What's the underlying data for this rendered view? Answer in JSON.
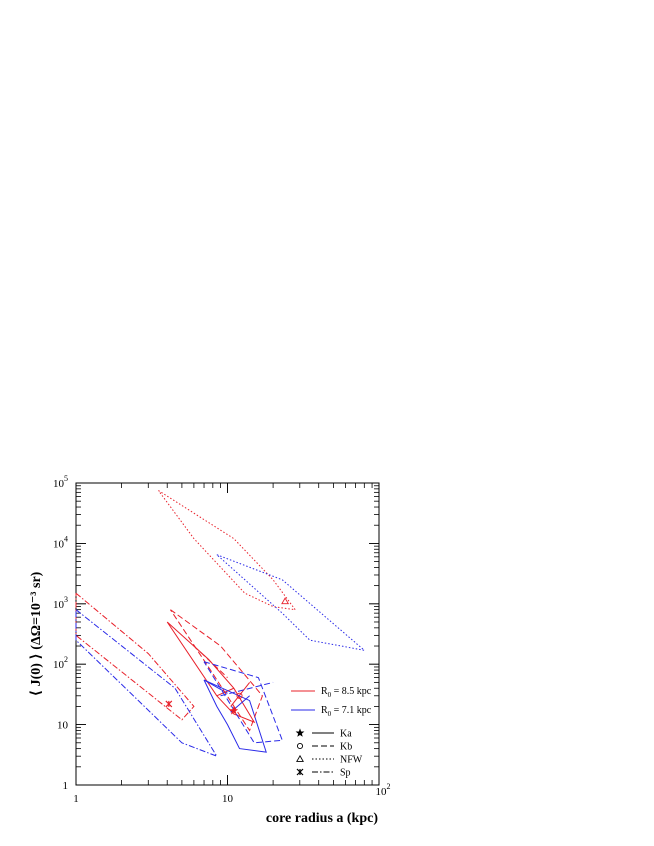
{
  "chart_data": {
    "type": "line",
    "title": "",
    "xlabel": "core radius a (kpc)",
    "ylabel": "⟨ J(0) ⟩ (ΔΩ=10⁻³ sr)",
    "xscale": "log",
    "yscale": "log",
    "xlim": [
      1,
      100
    ],
    "ylim": [
      1,
      100000
    ],
    "x_ticks": [
      {
        "value": 1,
        "base": "1",
        "exp": ""
      },
      {
        "value": 10,
        "base": "10",
        "exp": ""
      },
      {
        "value": 100,
        "base": "10",
        "exp": "2"
      }
    ],
    "y_ticks": [
      {
        "value": 1,
        "base": "1",
        "exp": ""
      },
      {
        "value": 10,
        "base": "10",
        "exp": ""
      },
      {
        "value": 100,
        "base": "10",
        "exp": "2"
      },
      {
        "value": 1000,
        "base": "10",
        "exp": "3"
      },
      {
        "value": 10000,
        "base": "10",
        "exp": "4"
      },
      {
        "value": 100000,
        "base": "10",
        "exp": "5"
      }
    ],
    "colors": {
      "R0_8.5": "#e8202a",
      "R0_7.1": "#2a2ae8"
    },
    "legend": {
      "placement": "center-right",
      "colors": [
        {
          "label": "R",
          "sub": "0",
          "rest": " = 8.5 kpc",
          "color": "#e8202a"
        },
        {
          "label": "R",
          "sub": "0",
          "rest": " = 7.1 kpc",
          "color": "#2a2ae8"
        }
      ],
      "models": [
        {
          "marker": "star",
          "dash": "solid",
          "label": "Ka"
        },
        {
          "marker": "circle",
          "dash": "dashed",
          "label": "Kb"
        },
        {
          "marker": "triangle",
          "dash": "dotted",
          "label": "NFW"
        },
        {
          "marker": "asterisk",
          "dash": "dashdot",
          "label": "Sp"
        }
      ]
    },
    "series": [
      {
        "model": "Ka",
        "R0": "8.5",
        "color": "#e8202a",
        "dash": "solid",
        "points": [
          [
            4.0,
            500
          ],
          [
            7.5,
            120
          ],
          [
            11,
            40
          ],
          [
            15,
            11
          ],
          [
            11,
            15
          ],
          [
            8.5,
            30
          ],
          [
            4.0,
            500
          ]
        ],
        "extra": [
          [
            [
              8.5,
              30
            ],
            [
              11,
              40
            ]
          ],
          [
            [
              10.5,
              20
            ],
            [
              14,
              50
            ]
          ]
        ]
      },
      {
        "model": "Ka",
        "R0": "7.1",
        "color": "#2a2ae8",
        "dash": "solid",
        "points": [
          [
            7.0,
            55
          ],
          [
            14,
            25
          ],
          [
            18,
            3.5
          ],
          [
            12,
            4
          ],
          [
            10,
            10
          ],
          [
            8.5,
            20
          ],
          [
            7.0,
            55
          ]
        ],
        "extra": [
          [
            [
              10.5,
              16
            ],
            [
              14,
              30
            ]
          ],
          [
            [
              7,
              55
            ],
            [
              10,
              33
            ]
          ]
        ]
      },
      {
        "model": "Kb",
        "R0": "8.5",
        "color": "#e8202a",
        "dash": "dashed",
        "points": [
          [
            4.2,
            800
          ],
          [
            9,
            200
          ],
          [
            17,
            30
          ],
          [
            14,
            8
          ],
          [
            8,
            70
          ],
          [
            4.2,
            800
          ]
        ],
        "extra": [
          [
            [
              6,
              200
            ],
            [
              10,
              60
            ]
          ]
        ]
      },
      {
        "model": "Kb",
        "R0": "7.1",
        "color": "#2a2ae8",
        "dash": "dashed",
        "points": [
          [
            7.0,
            110
          ],
          [
            16,
            60
          ],
          [
            23,
            5.5
          ],
          [
            15,
            5
          ],
          [
            7.0,
            110
          ]
        ],
        "extra": [
          [
            [
              9,
              30
            ],
            [
              20,
              50
            ]
          ]
        ]
      },
      {
        "model": "NFW",
        "R0": "8.5",
        "color": "#e8202a",
        "dash": "dotted",
        "points": [
          [
            3.5,
            75000
          ],
          [
            11,
            12000
          ],
          [
            20,
            2500
          ],
          [
            28,
            800
          ],
          [
            20,
            900
          ],
          [
            13,
            1500
          ],
          [
            6,
            12000
          ],
          [
            3.5,
            75000
          ]
        ],
        "extra": []
      },
      {
        "model": "NFW",
        "R0": "7.1",
        "color": "#2a2ae8",
        "dash": "dotted",
        "points": [
          [
            8.5,
            6500
          ],
          [
            23,
            2500
          ],
          [
            80,
            170
          ],
          [
            35,
            250
          ],
          [
            23,
            700
          ],
          [
            8.5,
            6500
          ]
        ],
        "extra": []
      },
      {
        "model": "Sp",
        "R0": "8.5",
        "color": "#e8202a",
        "dash": "dashdot",
        "points": [
          [
            1.0,
            1500
          ],
          [
            3,
            150
          ],
          [
            6,
            20
          ],
          [
            5,
            12
          ],
          [
            1.0,
            300
          ],
          [
            1.0,
            1500
          ]
        ],
        "extra": []
      },
      {
        "model": "Sp",
        "R0": "7.1",
        "color": "#2a2ae8",
        "dash": "dashdot",
        "points": [
          [
            1.0,
            800
          ],
          [
            4.5,
            40
          ],
          [
            8.5,
            3
          ],
          [
            5,
            5
          ],
          [
            1.0,
            250
          ],
          [
            1.0,
            800
          ]
        ],
        "extra": []
      }
    ],
    "markers": [
      {
        "model": "Ka",
        "marker": "star",
        "x": 11,
        "y": 17,
        "color": "#e8202a"
      },
      {
        "model": "Kb",
        "marker": "circle",
        "x": 12,
        "y": 30,
        "color": "#e8202a"
      },
      {
        "model": "NFW",
        "marker": "triangle",
        "x": 24,
        "y": 1100,
        "color": "#e8202a"
      },
      {
        "model": "Sp",
        "marker": "asterisk",
        "x": 4.1,
        "y": 22,
        "color": "#e8202a"
      }
    ]
  }
}
